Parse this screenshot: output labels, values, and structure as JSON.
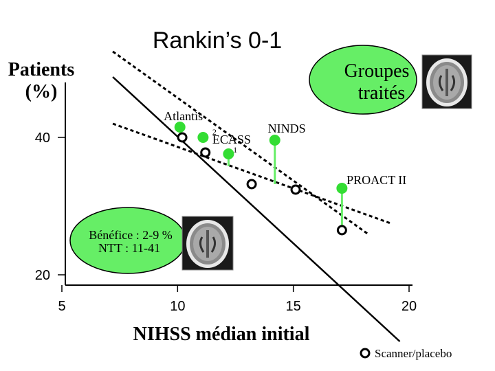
{
  "chart_data": {
    "type": "scatter",
    "title": "Rankin’s 0-1",
    "ylabel": "Patients (%)",
    "xlabel": "NIHSS médian initial",
    "xlim": [
      5,
      20
    ],
    "ylim": [
      10,
      50
    ],
    "x_ticks": [
      "5",
      "10",
      "15",
      "20"
    ],
    "y_ticks": [
      "20",
      "40"
    ],
    "callouts": {
      "treated_groups": "Groupes traités",
      "benefit_line1": "Bénéfice : 2-9 %",
      "benefit_line2": "NTT : 11-41"
    },
    "legend": {
      "placebo_label": "Scanner/placebo",
      "position": "bottom-right"
    },
    "series": [
      {
        "role": "treated",
        "color": "#33dd33",
        "points": [
          {
            "x": 10.1,
            "y": 41.5
          },
          {
            "x": 11.1,
            "y": 40.0
          },
          {
            "x": 12.2,
            "y": 37.6
          },
          {
            "x": 14.2,
            "y": 39.6
          },
          {
            "x": 17.1,
            "y": 32.6
          }
        ]
      },
      {
        "role": "placebo",
        "name": "Scanner/placebo",
        "color": "#000000",
        "points": [
          {
            "x": 10.2,
            "y": 40.0
          },
          {
            "x": 11.2,
            "y": 37.8
          },
          {
            "x": 13.2,
            "y": 33.2
          },
          {
            "x": 15.1,
            "y": 32.4
          },
          {
            "x": 17.1,
            "y": 26.5
          }
        ]
      }
    ],
    "point_labels": [
      {
        "text": "Atlantis",
        "x": 9.4,
        "y": 42.5
      },
      {
        "text": "ECASS",
        "x": 11.5,
        "y": 39.1
      },
      {
        "text": "NINDS",
        "x": 13.9,
        "y": 40.7
      },
      {
        "text": "PROACT II",
        "x": 17.3,
        "y": 33.2
      }
    ],
    "superscripts": [
      {
        "text": "2",
        "x": 11.5,
        "y": 40.4
      },
      {
        "text": "1",
        "x": 12.4,
        "y": 37.8
      }
    ],
    "lines": [
      {
        "style": "solid",
        "from": [
          7.2,
          48.8
        ],
        "to": [
          19.6,
          10.3
        ]
      },
      {
        "style": "dashed",
        "from": [
          7.2,
          52.5
        ],
        "to": [
          18.2,
          26.0
        ]
      },
      {
        "style": "dashed",
        "from": [
          7.2,
          42.0
        ],
        "to": [
          19.2,
          27.5
        ]
      }
    ]
  }
}
